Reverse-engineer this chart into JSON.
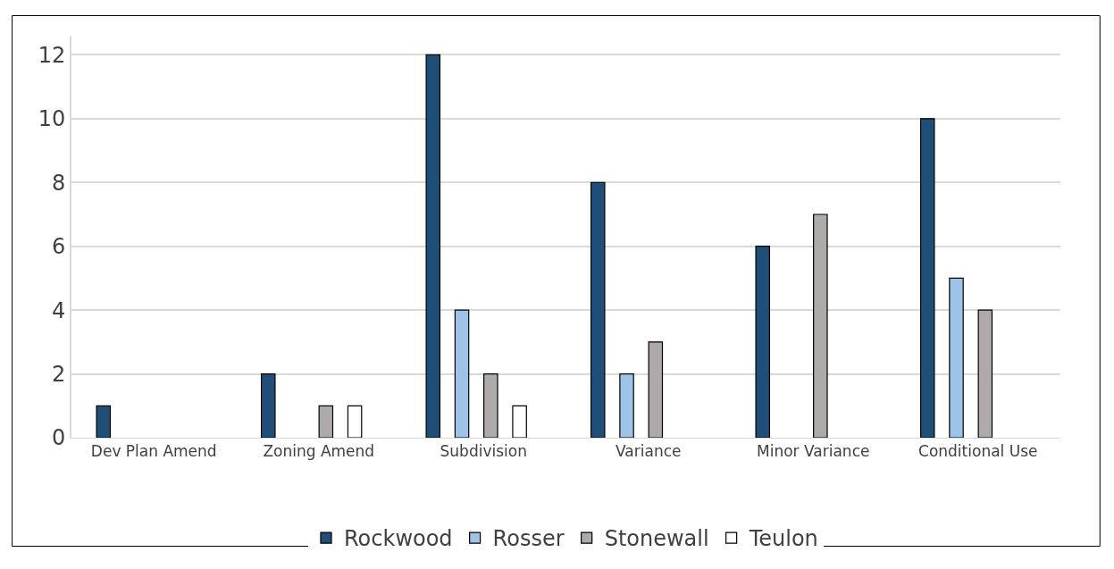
{
  "chart_data": {
    "type": "bar",
    "categories": [
      "Dev Plan Amend",
      "Zoning Amend",
      "Subdivision",
      "Variance",
      "Minor Variance",
      "Conditional Use"
    ],
    "series": [
      {
        "name": "Rockwood",
        "color": "#1f4e79",
        "values": [
          1,
          2,
          12,
          8,
          6,
          10
        ]
      },
      {
        "name": "Rosser",
        "color": "#9dc3e6",
        "values": [
          0,
          0,
          4,
          2,
          0,
          5
        ]
      },
      {
        "name": "Stonewall",
        "color": "#aeaaaa",
        "values": [
          0,
          1,
          2,
          3,
          7,
          4
        ]
      },
      {
        "name": "Teulon",
        "color": "#ffffff",
        "values": [
          0,
          1,
          1,
          0,
          0,
          0
        ]
      }
    ],
    "ylim": [
      0,
      12.6
    ],
    "yticks": [
      0,
      2,
      4,
      6,
      8,
      10,
      12
    ],
    "grid": "y",
    "legend": "bottom"
  }
}
